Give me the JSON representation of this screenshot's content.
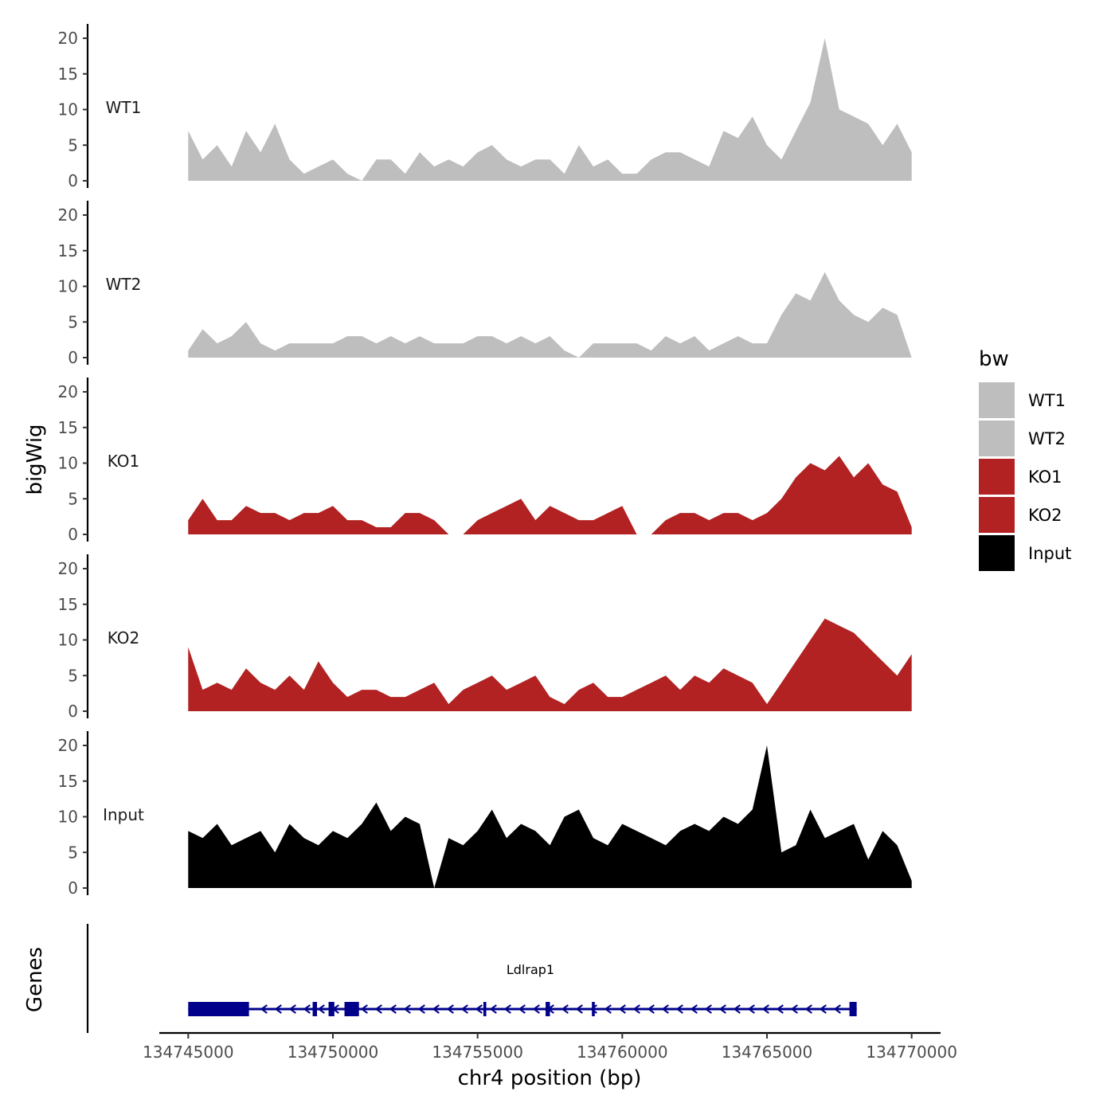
{
  "chart_data": {
    "type": "area",
    "ylabel": "bigWig",
    "genes_label": "Genes",
    "xlabel": "chr4 position (bp)",
    "xlim": [
      134744000,
      134771000
    ],
    "x_ticks": [
      134745000,
      134750000,
      134755000,
      134760000,
      134765000,
      134770000
    ],
    "x_tick_labels": [
      "134745000",
      "134750000",
      "134755000",
      "134760000",
      "134765000",
      "134770000"
    ],
    "ylim": [
      0,
      22
    ],
    "y_ticks": [
      0,
      5,
      10,
      15,
      20
    ],
    "y_tick_labels": [
      "0",
      "5",
      "10",
      "15",
      "20"
    ],
    "legend": {
      "title": "bw",
      "position": "right",
      "entries": [
        {
          "label": "WT1",
          "color": "#bebebe"
        },
        {
          "label": "WT2",
          "color": "#bebebe"
        },
        {
          "label": "KO1",
          "color": "#b22222"
        },
        {
          "label": "KO2",
          "color": "#b22222"
        },
        {
          "label": "Input",
          "color": "#000000"
        }
      ]
    },
    "series": [
      {
        "name": "WT1",
        "color": "#bebebe",
        "x": [
          134745000,
          134745500,
          134746000,
          134746500,
          134747000,
          134747500,
          134748000,
          134748500,
          134749000,
          134749500,
          134750000,
          134750500,
          134751000,
          134751500,
          134752000,
          134752500,
          134753000,
          134753500,
          134754000,
          134754500,
          134755000,
          134755500,
          134756000,
          134756500,
          134757000,
          134757500,
          134758000,
          134758500,
          134759000,
          134759500,
          134760000,
          134760500,
          134761000,
          134761500,
          134762000,
          134762500,
          134763000,
          134763500,
          134764000,
          134764500,
          134765000,
          134765500,
          134766000,
          134766500,
          134767000,
          134767500,
          134768000,
          134768500,
          134769000,
          134769500,
          134770000
        ],
        "values": [
          7,
          3,
          5,
          2,
          7,
          4,
          8,
          3,
          1,
          2,
          3,
          1,
          0,
          3,
          3,
          1,
          4,
          2,
          3,
          2,
          4,
          5,
          3,
          2,
          3,
          3,
          1,
          5,
          2,
          3,
          1,
          1,
          3,
          4,
          4,
          3,
          2,
          7,
          6,
          9,
          5,
          3,
          7,
          11,
          20,
          10,
          9,
          8,
          5,
          8,
          4
        ]
      },
      {
        "name": "WT2",
        "color": "#bebebe",
        "x": [
          134745000,
          134745500,
          134746000,
          134746500,
          134747000,
          134747500,
          134748000,
          134748500,
          134749000,
          134749500,
          134750000,
          134750500,
          134751000,
          134751500,
          134752000,
          134752500,
          134753000,
          134753500,
          134754000,
          134754500,
          134755000,
          134755500,
          134756000,
          134756500,
          134757000,
          134757500,
          134758000,
          134758500,
          134759000,
          134759500,
          134760000,
          134760500,
          134761000,
          134761500,
          134762000,
          134762500,
          134763000,
          134763500,
          134764000,
          134764500,
          134765000,
          134765500,
          134766000,
          134766500,
          134767000,
          134767500,
          134768000,
          134768500,
          134769000,
          134769500,
          134770000
        ],
        "values": [
          1,
          4,
          2,
          3,
          5,
          2,
          1,
          2,
          2,
          2,
          2,
          3,
          3,
          2,
          3,
          2,
          3,
          2,
          2,
          2,
          3,
          3,
          2,
          3,
          2,
          3,
          1,
          0,
          2,
          2,
          2,
          2,
          1,
          3,
          2,
          3,
          1,
          2,
          3,
          2,
          2,
          6,
          9,
          8,
          12,
          8,
          6,
          5,
          7,
          6,
          0
        ]
      },
      {
        "name": "KO1",
        "color": "#b22222",
        "x": [
          134745000,
          134745500,
          134746000,
          134746500,
          134747000,
          134747500,
          134748000,
          134748500,
          134749000,
          134749500,
          134750000,
          134750500,
          134751000,
          134751500,
          134752000,
          134752500,
          134753000,
          134753500,
          134754000,
          134754500,
          134755000,
          134755500,
          134756000,
          134756500,
          134757000,
          134757500,
          134758000,
          134758500,
          134759000,
          134759500,
          134760000,
          134760500,
          134761000,
          134761500,
          134762000,
          134762500,
          134763000,
          134763500,
          134764000,
          134764500,
          134765000,
          134765500,
          134766000,
          134766500,
          134767000,
          134767500,
          134768000,
          134768500,
          134769000,
          134769500,
          134770000
        ],
        "values": [
          2,
          5,
          2,
          2,
          4,
          3,
          3,
          2,
          3,
          3,
          4,
          2,
          2,
          1,
          1,
          3,
          3,
          2,
          0,
          0,
          2,
          3,
          4,
          5,
          2,
          4,
          3,
          2,
          2,
          3,
          4,
          0,
          0,
          2,
          3,
          3,
          2,
          3,
          3,
          2,
          3,
          5,
          8,
          10,
          9,
          11,
          8,
          10,
          7,
          6,
          1
        ]
      },
      {
        "name": "KO2",
        "color": "#b22222",
        "x": [
          134745000,
          134745500,
          134746000,
          134746500,
          134747000,
          134747500,
          134748000,
          134748500,
          134749000,
          134749500,
          134750000,
          134750500,
          134751000,
          134751500,
          134752000,
          134752500,
          134753000,
          134753500,
          134754000,
          134754500,
          134755000,
          134755500,
          134756000,
          134756500,
          134757000,
          134757500,
          134758000,
          134758500,
          134759000,
          134759500,
          134760000,
          134760500,
          134761000,
          134761500,
          134762000,
          134762500,
          134763000,
          134763500,
          134764000,
          134764500,
          134765000,
          134765500,
          134766000,
          134766500,
          134767000,
          134767500,
          134768000,
          134768500,
          134769000,
          134769500,
          134770000
        ],
        "values": [
          9,
          3,
          4,
          3,
          6,
          4,
          3,
          5,
          3,
          7,
          4,
          2,
          3,
          3,
          2,
          2,
          3,
          4,
          1,
          3,
          4,
          5,
          3,
          4,
          5,
          2,
          1,
          3,
          4,
          2,
          2,
          3,
          4,
          5,
          3,
          5,
          4,
          6,
          5,
          4,
          1,
          4,
          7,
          10,
          13,
          12,
          11,
          9,
          7,
          5,
          8
        ]
      },
      {
        "name": "Input",
        "color": "#000000",
        "x": [
          134745000,
          134745500,
          134746000,
          134746500,
          134747000,
          134747500,
          134748000,
          134748500,
          134749000,
          134749500,
          134750000,
          134750500,
          134751000,
          134751500,
          134752000,
          134752500,
          134753000,
          134753500,
          134754000,
          134754500,
          134755000,
          134755500,
          134756000,
          134756500,
          134757000,
          134757500,
          134758000,
          134758500,
          134759000,
          134759500,
          134760000,
          134760500,
          134761000,
          134761500,
          134762000,
          134762500,
          134763000,
          134763500,
          134764000,
          134764500,
          134765000,
          134765500,
          134766000,
          134766500,
          134767000,
          134767500,
          134768000,
          134768500,
          134769000,
          134769500,
          134770000
        ],
        "values": [
          8,
          7,
          9,
          6,
          7,
          8,
          5,
          9,
          7,
          6,
          8,
          7,
          9,
          12,
          8,
          10,
          9,
          0,
          7,
          6,
          8,
          11,
          7,
          9,
          8,
          6,
          10,
          11,
          7,
          6,
          9,
          8,
          7,
          6,
          8,
          9,
          8,
          10,
          9,
          11,
          20,
          5,
          6,
          11,
          7,
          8,
          9,
          4,
          8,
          6,
          1
        ]
      }
    ],
    "genes": [
      {
        "name": "Ldlrap1",
        "start": 134745000,
        "end": 134768100,
        "strand": "-",
        "exons": [
          [
            134745000,
            134747100
          ],
          [
            134749300,
            134749450
          ],
          [
            134749850,
            134750050
          ],
          [
            134750400,
            134750900
          ],
          [
            134755200,
            134755300
          ],
          [
            134757350,
            134757500
          ],
          [
            134758950,
            134759050
          ],
          [
            134767850,
            134768100
          ]
        ]
      }
    ]
  }
}
